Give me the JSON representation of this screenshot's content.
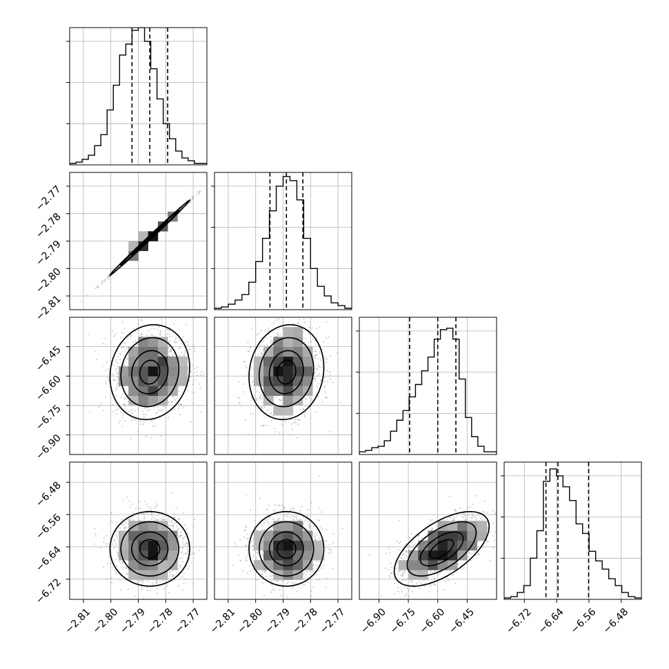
{
  "chart_data": {
    "type": "corner",
    "parameters": 4,
    "grid": true,
    "colors": {
      "ink": "#000000",
      "grid": "#b0b0b0",
      "sample": "#9a9a9a"
    },
    "axes": [
      {
        "range": [
          -2.815,
          -2.765
        ],
        "ticks": [
          {
            "value": -2.81,
            "label": "−2.81"
          },
          {
            "value": -2.8,
            "label": "−2.80"
          },
          {
            "value": -2.79,
            "label": "−2.79"
          },
          {
            "value": -2.78,
            "label": "−2.78"
          },
          {
            "value": -2.77,
            "label": "−2.77"
          }
        ],
        "quantiles": [
          -2.7923,
          -2.7858,
          -2.7793
        ],
        "center": -2.7858,
        "sigma": 0.0066
      },
      {
        "range": [
          -2.815,
          -2.765
        ],
        "ticks": [
          {
            "value": -2.81,
            "label": "−2.81"
          },
          {
            "value": -2.8,
            "label": "−2.80"
          },
          {
            "value": -2.79,
            "label": "−2.79"
          },
          {
            "value": -2.78,
            "label": "−2.78"
          },
          {
            "value": -2.77,
            "label": "−2.77"
          }
        ],
        "quantiles": [
          -2.7948,
          -2.7888,
          -2.7828
        ],
        "center": -2.7888,
        "sigma": 0.0062
      },
      {
        "range": [
          -7.0,
          -6.3
        ],
        "ticks": [
          {
            "value": -6.9,
            "label": "−6.90"
          },
          {
            "value": -6.75,
            "label": "−6.75"
          },
          {
            "value": -6.6,
            "label": "−6.60"
          },
          {
            "value": -6.45,
            "label": "−6.45"
          }
        ],
        "quantiles": [
          -6.7435,
          -6.6,
          -6.5075
        ],
        "center": -6.58,
        "sigma": 0.11
      },
      {
        "range": [
          -6.77,
          -6.43
        ],
        "ticks": [
          {
            "value": -6.72,
            "label": "−6.72"
          },
          {
            "value": -6.64,
            "label": "−6.64"
          },
          {
            "value": -6.56,
            "label": "−6.56"
          },
          {
            "value": -6.48,
            "label": "−6.48"
          }
        ],
        "quantiles": [
          -6.6664,
          -6.6368,
          -6.5608
        ],
        "center": -6.645,
        "sigma": 0.042
      }
    ],
    "histograms": [
      [
        0.01,
        0.02,
        0.04,
        0.07,
        0.14,
        0.22,
        0.4,
        0.58,
        0.8,
        0.88,
        0.98,
        1.0,
        0.9,
        0.7,
        0.48,
        0.3,
        0.19,
        0.1,
        0.05,
        0.03,
        0.01,
        0.01
      ],
      [
        0.01,
        0.02,
        0.04,
        0.07,
        0.11,
        0.2,
        0.35,
        0.52,
        0.72,
        0.9,
        0.97,
        0.94,
        0.8,
        0.52,
        0.3,
        0.17,
        0.1,
        0.05,
        0.03,
        0.01
      ],
      [
        0.02,
        0.03,
        0.05,
        0.06,
        0.1,
        0.17,
        0.25,
        0.32,
        0.42,
        0.51,
        0.61,
        0.71,
        0.84,
        0.91,
        0.92,
        0.84,
        0.55,
        0.27,
        0.13,
        0.06,
        0.02,
        0.02
      ],
      [
        0.01,
        0.02,
        0.05,
        0.1,
        0.3,
        0.5,
        0.86,
        0.95,
        0.9,
        0.82,
        0.72,
        0.55,
        0.48,
        0.35,
        0.28,
        0.22,
        0.15,
        0.1,
        0.05,
        0.02,
        0.01
      ]
    ],
    "pairs": [
      {
        "row": 1,
        "col": 0,
        "rho": 0.998
      },
      {
        "row": 2,
        "col": 0,
        "rho": 0.1
      },
      {
        "row": 2,
        "col": 1,
        "rho": 0.1
      },
      {
        "row": 3,
        "col": 0,
        "rho": 0.0
      },
      {
        "row": 3,
        "col": 1,
        "rho": 0.0
      },
      {
        "row": 3,
        "col": 2,
        "rho": 0.6
      }
    ]
  }
}
